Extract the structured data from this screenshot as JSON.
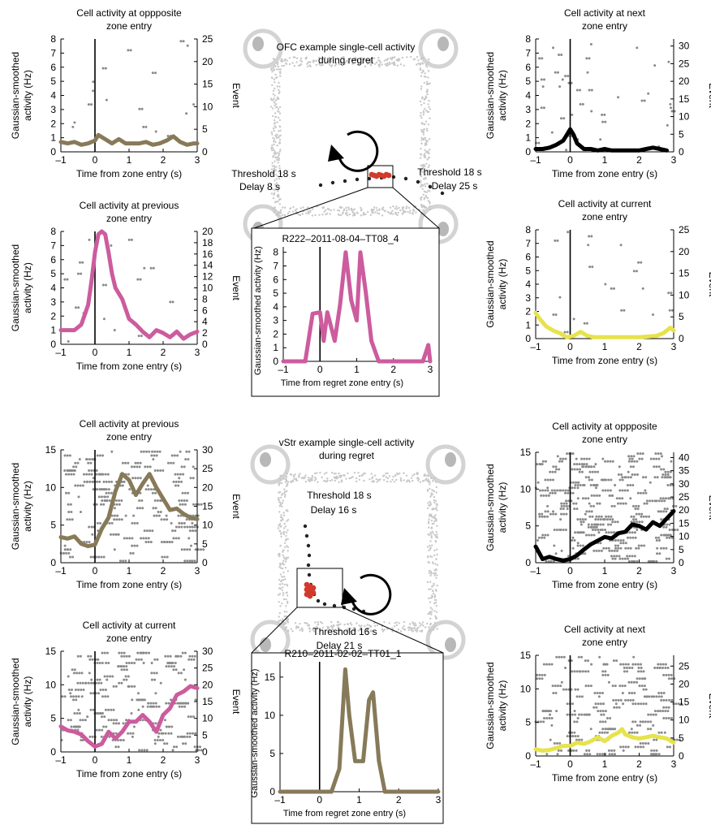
{
  "colors": {
    "pink": "#cc5c9e",
    "brown": "#877a59",
    "black": "#000000",
    "yellow": "#e6e34c",
    "raster": "#8a8a8a",
    "maze": "#c8c8c8",
    "regret": "#d23a2c"
  },
  "maps": [
    {
      "title": [
        "OFC example single-cell activity",
        "during regret"
      ],
      "annotations": [
        {
          "lines": [
            "Threshold 18 s",
            "Delay 8 s"
          ]
        },
        {
          "lines": [
            "Threshold 18 s",
            "Delay 25 s"
          ]
        }
      ]
    },
    {
      "title": [
        "vStr example single-cell activity",
        "during regret"
      ],
      "annotations": [
        {
          "lines": [
            "Threshold 18 s",
            "Delay 16 s"
          ]
        },
        {
          "lines": [
            "Threshold 16 s",
            "Delay 21 s"
          ]
        }
      ]
    }
  ],
  "chart_data": [
    {
      "id": "ofc-opposite",
      "type": "line",
      "title": [
        "Cell activity at oppposite",
        "zone entry"
      ],
      "xlabel": "Time from zone entry (s)",
      "ylabel": [
        "Gaussian-smoothed",
        "activity (Hz)"
      ],
      "y2label": "Event",
      "xlim": [
        -1,
        3
      ],
      "ylim": [
        0,
        8
      ],
      "y2lim": [
        0,
        25
      ],
      "xticks": [
        -1,
        0,
        1,
        2,
        3
      ],
      "yticks": [
        0,
        1,
        2,
        3,
        4,
        5,
        6,
        7,
        8
      ],
      "y2ticks": [
        0,
        5,
        10,
        15,
        20,
        25
      ],
      "raster": true,
      "grid": false,
      "series": [
        {
          "color": "brown",
          "x": [
            -1,
            -0.8,
            -0.6,
            -0.4,
            -0.2,
            0,
            0.1,
            0.3,
            0.5,
            0.7,
            0.9,
            1.1,
            1.3,
            1.5,
            1.7,
            1.9,
            2.1,
            2.3,
            2.5,
            2.7,
            2.9,
            3
          ],
          "y": [
            0.7,
            0.6,
            0.7,
            0.5,
            0.6,
            0.8,
            1.2,
            0.9,
            0.6,
            0.9,
            0.6,
            0.6,
            0.6,
            0.7,
            0.5,
            0.6,
            0.8,
            1.1,
            0.7,
            0.5,
            0.6,
            0.6
          ]
        }
      ]
    },
    {
      "id": "ofc-previous",
      "type": "line",
      "title": [
        "Cell activity at previous",
        "zone entry"
      ],
      "xlabel": "Time from zone entry (s)",
      "ylabel": [
        "Gaussian-smoothed",
        "activity (Hz)"
      ],
      "y2label": "Event",
      "xlim": [
        -1,
        3
      ],
      "ylim": [
        0,
        8
      ],
      "y2lim": [
        0,
        20
      ],
      "xticks": [
        -1,
        0,
        1,
        2,
        3
      ],
      "yticks": [
        0,
        1,
        2,
        3,
        4,
        5,
        6,
        7,
        8
      ],
      "y2ticks": [
        0,
        2,
        4,
        6,
        8,
        10,
        12,
        14,
        16,
        18,
        20
      ],
      "raster": true,
      "grid": false,
      "series": [
        {
          "color": "pink",
          "x": [
            -1,
            -0.8,
            -0.6,
            -0.4,
            -0.2,
            -0.1,
            0,
            0.1,
            0.2,
            0.3,
            0.4,
            0.5,
            0.6,
            0.8,
            1,
            1.2,
            1.4,
            1.6,
            1.8,
            2,
            2.2,
            2.4,
            2.6,
            2.8,
            3
          ],
          "y": [
            1.0,
            1.0,
            1.0,
            1.4,
            2.8,
            4.5,
            6.5,
            7.8,
            8.2,
            7.8,
            6.5,
            5.0,
            4.0,
            3.2,
            1.8,
            1.4,
            0.9,
            0.5,
            1.0,
            0.8,
            0.5,
            0.9,
            0.4,
            0.7,
            0.9
          ]
        }
      ]
    },
    {
      "id": "ofc-next",
      "type": "line",
      "title": [
        "Cell activity at next",
        "zone entry"
      ],
      "xlabel": "Time from zone entry (s)",
      "ylabel": [
        "Gaussian-smoothed",
        "activity (Hz)"
      ],
      "y2label": "Event",
      "xlim": [
        -1,
        3
      ],
      "ylim": [
        0,
        8
      ],
      "y2lim": [
        0,
        32
      ],
      "xticks": [
        -1,
        0,
        1,
        2,
        3
      ],
      "yticks": [
        0,
        1,
        2,
        3,
        4,
        5,
        6,
        7,
        8
      ],
      "y2ticks": [
        0,
        5,
        10,
        15,
        20,
        25,
        30
      ],
      "raster": true,
      "grid": false,
      "series": [
        {
          "color": "black",
          "x": [
            -1,
            -0.8,
            -0.6,
            -0.4,
            -0.2,
            -0.1,
            0,
            0.1,
            0.2,
            0.4,
            0.6,
            0.8,
            1,
            1.2,
            1.4,
            1.6,
            1.8,
            2,
            2.2,
            2.4,
            2.6,
            2.8
          ],
          "y": [
            0.2,
            0.2,
            0.3,
            0.5,
            0.8,
            1.2,
            1.6,
            1.2,
            0.6,
            0.2,
            0.2,
            0.1,
            0.2,
            0.1,
            0.1,
            0.1,
            0.1,
            0.1,
            0.2,
            0.3,
            0.2,
            0.1
          ]
        }
      ]
    },
    {
      "id": "ofc-current",
      "type": "line",
      "title": [
        "Cell activity at current",
        "zone entry"
      ],
      "xlabel": "Time from zone entry (s)",
      "ylabel": [
        "Gaussian-smoothed",
        "activity (Hz)"
      ],
      "y2label": "Event",
      "xlim": [
        -1,
        3
      ],
      "ylim": [
        0,
        8
      ],
      "y2lim": [
        0,
        25
      ],
      "xticks": [
        -1,
        0,
        1,
        2,
        3
      ],
      "yticks": [
        0,
        1,
        2,
        3,
        4,
        5,
        6,
        7,
        8
      ],
      "y2ticks": [
        0,
        5,
        10,
        15,
        20,
        25
      ],
      "raster": true,
      "grid": false,
      "series": [
        {
          "color": "yellow",
          "x": [
            -1,
            -0.9,
            -0.7,
            -0.5,
            -0.3,
            -0.1,
            0.1,
            0.3,
            0.5,
            0.7,
            1,
            1.5,
            2,
            2.5,
            2.7,
            2.9,
            3
          ],
          "y": [
            1.9,
            1.5,
            0.9,
            0.6,
            0.4,
            0.1,
            0.2,
            0.5,
            0.2,
            0.1,
            0.1,
            0.1,
            0.1,
            0.2,
            0.4,
            0.8,
            0.6
          ]
        }
      ]
    },
    {
      "id": "vstr-previous",
      "type": "line",
      "title": [
        "Cell activity at previous",
        "zone entry"
      ],
      "xlabel": "Time from zone entry (s)",
      "ylabel": [
        "Gaussian-smoothed",
        "activity (Hz)"
      ],
      "y2label": "Event",
      "xlim": [
        -1,
        3
      ],
      "ylim": [
        0,
        15
      ],
      "y2lim": [
        0,
        30
      ],
      "xticks": [
        -1,
        0,
        1,
        2,
        3
      ],
      "yticks": [
        0,
        5,
        10,
        15
      ],
      "y2ticks": [
        0,
        5,
        10,
        15,
        20,
        25,
        30
      ],
      "raster": true,
      "grid": false,
      "series": [
        {
          "color": "brown",
          "x": [
            -1,
            -0.8,
            -0.6,
            -0.4,
            -0.2,
            0,
            0.2,
            0.4,
            0.6,
            0.8,
            1,
            1.2,
            1.4,
            1.6,
            1.8,
            2,
            2.2,
            2.4,
            2.6,
            2.8,
            3
          ],
          "y": [
            3.4,
            3.2,
            3.5,
            2.5,
            2.2,
            2.4,
            4.5,
            6.0,
            9.5,
            11.8,
            11.0,
            9.0,
            10.5,
            11.8,
            10.0,
            8.5,
            7.0,
            7.2,
            6.5,
            6.0,
            5.8
          ]
        }
      ]
    },
    {
      "id": "vstr-current",
      "type": "line",
      "title": [
        "Cell activity at current",
        "zone entry"
      ],
      "xlabel": "Time from zone entry (s)",
      "ylabel": [
        "Gaussian-smoothed",
        "activity (Hz)"
      ],
      "y2label": "Event",
      "xlim": [
        -1,
        3
      ],
      "ylim": [
        0,
        15
      ],
      "y2lim": [
        0,
        30
      ],
      "xticks": [
        -1,
        0,
        1,
        2,
        3
      ],
      "yticks": [
        0,
        5,
        10,
        15
      ],
      "y2ticks": [
        0,
        5,
        10,
        15,
        20,
        25,
        30
      ],
      "raster": true,
      "grid": false,
      "series": [
        {
          "color": "pink",
          "x": [
            -1,
            -0.8,
            -0.6,
            -0.4,
            -0.2,
            0,
            0.2,
            0.4,
            0.6,
            0.8,
            1,
            1.2,
            1.4,
            1.6,
            1.8,
            2,
            2.2,
            2.4,
            2.6,
            2.8,
            3
          ],
          "y": [
            3.8,
            3.2,
            3.0,
            2.6,
            1.6,
            0.8,
            1.2,
            3.0,
            2.0,
            3.0,
            4.5,
            4.5,
            5.5,
            4.5,
            3.0,
            5.5,
            6.5,
            8.5,
            9.0,
            9.8,
            9.5
          ]
        }
      ]
    },
    {
      "id": "vstr-opposite",
      "type": "line",
      "title": [
        "Cell activity at oppposite",
        "zone entry"
      ],
      "xlabel": "Time from zone entry (s)",
      "ylabel": [
        "Gaussian-smoothed",
        "activity (Hz)"
      ],
      "y2label": "Event",
      "xlim": [
        -1,
        3
      ],
      "ylim": [
        0,
        15
      ],
      "y2lim": [
        0,
        42
      ],
      "xticks": [
        -1,
        0,
        1,
        2,
        3
      ],
      "yticks": [
        0,
        5,
        10,
        15
      ],
      "y2ticks": [
        0,
        5,
        10,
        15,
        20,
        25,
        30,
        35,
        40
      ],
      "raster": true,
      "grid": false,
      "series": [
        {
          "color": "black",
          "x": [
            -1,
            -0.8,
            -0.6,
            -0.4,
            -0.2,
            0,
            0.2,
            0.4,
            0.6,
            0.8,
            1,
            1.2,
            1.4,
            1.6,
            1.8,
            2,
            2.2,
            2.4,
            2.6,
            2.8,
            3
          ],
          "y": [
            2.2,
            0.5,
            0.8,
            0.5,
            0.3,
            0.5,
            1.0,
            1.8,
            2.5,
            3.0,
            3.5,
            3.3,
            4.0,
            4.2,
            5.2,
            5.0,
            4.5,
            5.5,
            5.0,
            6.0,
            7.0
          ]
        }
      ]
    },
    {
      "id": "vstr-next",
      "type": "line",
      "title": [
        "Cell activity at next",
        "zone entry"
      ],
      "xlabel": "Time from zone entry (s)",
      "ylabel": [
        "Gaussian-smoothed",
        "activity (Hz)"
      ],
      "y2label": "Event",
      "xlim": [
        -1,
        3
      ],
      "ylim": [
        0,
        15
      ],
      "y2lim": [
        0,
        28
      ],
      "xticks": [
        -1,
        0,
        1,
        2,
        3
      ],
      "yticks": [
        0,
        5,
        10,
        15
      ],
      "y2ticks": [
        0,
        5,
        10,
        15,
        20,
        25
      ],
      "raster": true,
      "grid": false,
      "series": [
        {
          "color": "yellow",
          "x": [
            -1,
            -0.8,
            -0.6,
            -0.4,
            -0.2,
            0,
            0.2,
            0.4,
            0.6,
            0.8,
            1,
            1.2,
            1.4,
            1.5,
            1.6,
            1.8,
            2,
            2.2,
            2.4,
            2.6,
            2.8,
            3
          ],
          "y": [
            1.0,
            0.8,
            0.9,
            1.2,
            1.5,
            1.5,
            2.0,
            1.8,
            2.2,
            2.8,
            2.2,
            3.0,
            3.5,
            4.0,
            3.2,
            2.8,
            2.6,
            2.8,
            3.0,
            2.8,
            2.6,
            2.0
          ]
        }
      ]
    },
    {
      "id": "ofc-regret",
      "type": "line",
      "title": [
        "R222–2011-08-04–TT08_4"
      ],
      "xlabel": "Time from regret zone entry (s)",
      "ylabel": [
        "Gaussian-smoothed activity (Hz)"
      ],
      "xlim": [
        -1,
        3
      ],
      "ylim": [
        0,
        8.4
      ],
      "xticks": [
        -1,
        0,
        1,
        2,
        3
      ],
      "yticks": [
        0,
        1,
        2,
        3,
        4,
        5,
        6,
        7,
        8
      ],
      "raster": false,
      "grid": false,
      "series": [
        {
          "color": "pink",
          "x": [
            -1,
            -0.4,
            -0.2,
            0,
            0.1,
            0.2,
            0.4,
            0.55,
            0.7,
            0.85,
            1.0,
            1.1,
            1.25,
            1.4,
            1.6,
            1.8,
            2.0,
            2.2,
            2.8,
            2.95,
            3
          ],
          "y": [
            0,
            0,
            3.5,
            3.6,
            1.5,
            3.6,
            1.5,
            4.2,
            8.0,
            4.5,
            3.0,
            8.0,
            5.0,
            1.5,
            0,
            0,
            0,
            0,
            0,
            1.2,
            0
          ]
        }
      ]
    },
    {
      "id": "vstr-regret",
      "type": "line",
      "title": [
        "R210–2011-02-02–TT01_1"
      ],
      "xlabel": "Time from regret zone entry (s)",
      "ylabel": [
        "Gaussian-smoothed activity (Hz)"
      ],
      "xlim": [
        -1,
        3
      ],
      "ylim": [
        0,
        17
      ],
      "xticks": [
        -1,
        0,
        1,
        2,
        3
      ],
      "yticks": [
        0,
        5,
        10,
        15
      ],
      "raster": false,
      "grid": false,
      "series": [
        {
          "color": "brown",
          "x": [
            -1,
            0,
            0.3,
            0.5,
            0.65,
            0.75,
            0.9,
            1.1,
            1.25,
            1.35,
            1.5,
            1.65,
            1.8,
            2,
            3
          ],
          "y": [
            0,
            0,
            0,
            3.0,
            16.0,
            10.0,
            4.0,
            4.0,
            12.0,
            13.0,
            4.0,
            0,
            0,
            0,
            0
          ]
        }
      ]
    }
  ]
}
